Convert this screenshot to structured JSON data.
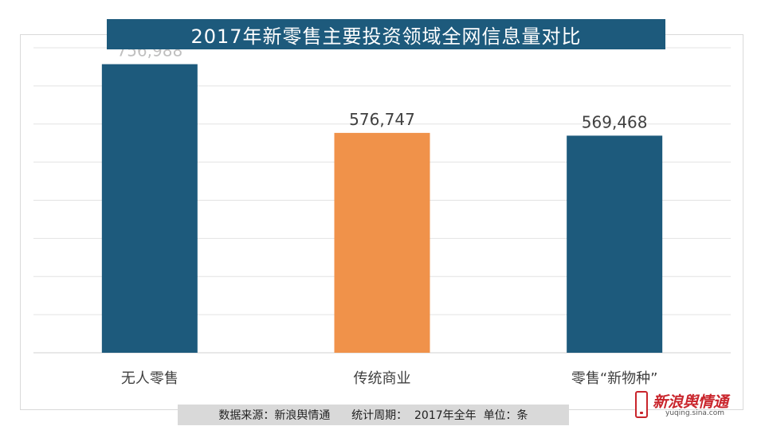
{
  "title": "2017年新零售主要投资领域全网信息量对比",
  "chart_data": {
    "type": "bar",
    "categories": [
      "无人零售",
      "传统商业",
      "零售“新物种”"
    ],
    "values": [
      756988,
      576747,
      569468
    ],
    "value_labels": [
      "756,988",
      "576,747",
      "569,468"
    ],
    "colors": [
      "#1d5a7c",
      "#f0924a",
      "#1d5a7c"
    ],
    "label_color_first": "#bfbfbf",
    "label_color": "#404040",
    "ylim": [
      0,
      800000
    ],
    "gridline_step": 100000,
    "grid": true,
    "xlabel": "",
    "ylabel": ""
  },
  "footer": {
    "source": "数据来源：新浪舆情通",
    "period": "统计周期：  2017年全年",
    "unit": "单位：条"
  },
  "logo": {
    "name": "新浪舆情通",
    "url": "yuqing.sina.com"
  }
}
